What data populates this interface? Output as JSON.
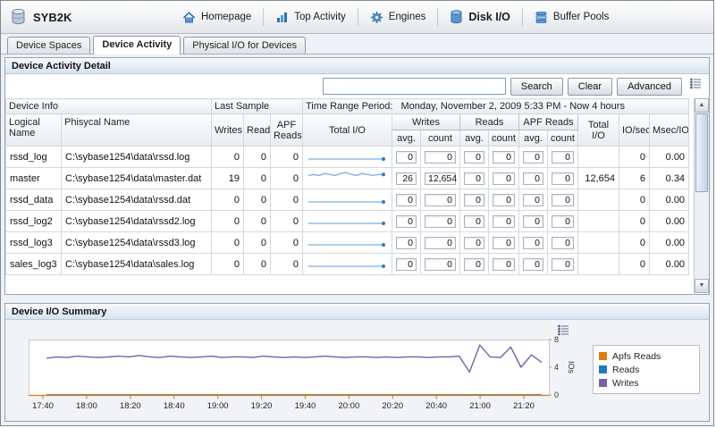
{
  "window": {
    "title": "SYB2K"
  },
  "nav": {
    "items": [
      {
        "label": "Homepage",
        "active": false
      },
      {
        "label": "Top Activity",
        "active": false
      },
      {
        "label": "Engines",
        "active": false
      },
      {
        "label": "Disk I/O",
        "active": true
      },
      {
        "label": "Buffer Pools",
        "active": false
      }
    ]
  },
  "tabs": [
    {
      "label": "Device Spaces",
      "active": false
    },
    {
      "label": "Device Activity",
      "active": true
    },
    {
      "label": "Physical I/O for Devices",
      "active": false
    }
  ],
  "detail_panel": {
    "title": "Device Activity Detail",
    "search": {
      "value": "",
      "search_label": "Search",
      "clear_label": "Clear",
      "advanced_label": "Advanced"
    },
    "table": {
      "group_device_info": "Device Info",
      "group_last_sample": "Last Sample",
      "time_range_label": "Time Range Period:",
      "time_range_value": "Monday, November 2, 2009  5:33 PM - Now  4 hours",
      "columns": {
        "logical_name": "Logical Name",
        "physical_name": "Phisycal Name",
        "writes": "Writes",
        "reads": "Reads",
        "apf_reads": "APF Reads",
        "total_io_trend": "Total I/O",
        "writes_group": "Writes",
        "reads_group": "Reads",
        "apf_group": "APF Reads",
        "avg": "avg.",
        "count": "count",
        "total_io": "Total I/O",
        "io_sec": "IO/sec",
        "msec_io": "Msec/IO"
      },
      "rows": [
        {
          "logical": "rssd_log",
          "physical": "C:\\sybase1254\\data\\rssd.log",
          "writes": "0",
          "reads": "0",
          "apf_reads": "0",
          "spark": [
            0,
            0
          ],
          "w_avg": "0",
          "w_count": "0",
          "r_avg": "0",
          "r_count": "0",
          "a_avg": "0",
          "a_count": "0",
          "total_io": "",
          "io_sec": "0",
          "msec_io": "0.00"
        },
        {
          "logical": "master",
          "physical": "C:\\sybase1254\\data\\master.dat",
          "writes": "19",
          "reads": "0",
          "apf_reads": "0",
          "spark": [
            5,
            6,
            5,
            7,
            6,
            5,
            7,
            8,
            6,
            5,
            7,
            6,
            5,
            6,
            6
          ],
          "w_avg": "26",
          "w_count": "12,654",
          "r_avg": "0",
          "r_count": "0",
          "a_avg": "0",
          "a_count": "0",
          "total_io": "12,654",
          "io_sec": "6",
          "msec_io": "0.34"
        },
        {
          "logical": "rssd_data",
          "physical": "C:\\sybase1254\\data\\rssd.dat",
          "writes": "0",
          "reads": "0",
          "apf_reads": "0",
          "spark": [
            0,
            0
          ],
          "w_avg": "0",
          "w_count": "0",
          "r_avg": "0",
          "r_count": "0",
          "a_avg": "0",
          "a_count": "0",
          "total_io": "",
          "io_sec": "0",
          "msec_io": "0.00"
        },
        {
          "logical": "rssd_log2",
          "physical": "C:\\sybase1254\\data\\rssd2.log",
          "writes": "0",
          "reads": "0",
          "apf_reads": "0",
          "spark": [
            0,
            0
          ],
          "w_avg": "0",
          "w_count": "0",
          "r_avg": "0",
          "r_count": "0",
          "a_avg": "0",
          "a_count": "0",
          "total_io": "",
          "io_sec": "0",
          "msec_io": "0.00"
        },
        {
          "logical": "rssd_log3",
          "physical": "C:\\sybase1254\\data\\rssd3.log",
          "writes": "0",
          "reads": "0",
          "apf_reads": "0",
          "spark": [
            0,
            0
          ],
          "w_avg": "0",
          "w_count": "0",
          "r_avg": "0",
          "r_count": "0",
          "a_avg": "0",
          "a_count": "0",
          "total_io": "",
          "io_sec": "0",
          "msec_io": "0.00"
        },
        {
          "logical": "sales_log3",
          "physical": "C:\\sybase1254\\data\\sales.log",
          "writes": "0",
          "reads": "0",
          "apf_reads": "0",
          "spark": [
            0,
            0
          ],
          "w_avg": "0",
          "w_count": "0",
          "r_avg": "0",
          "r_count": "0",
          "a_avg": "0",
          "a_count": "0",
          "total_io": "",
          "io_sec": "0",
          "msec_io": "0.00"
        }
      ]
    },
    "scrollbar": {
      "up_icon": "▲",
      "down_icon": "▼"
    }
  },
  "summary_panel": {
    "title": "Device I/O Summary"
  },
  "chart_data": {
    "type": "line",
    "title": "Device I/O Summary",
    "xlabel": "",
    "ylabel": "IOs",
    "ylim": [
      0,
      8
    ],
    "yticks": [
      0,
      4,
      8
    ],
    "grid": false,
    "legend_position": "right",
    "x_tick_labels": [
      "17:40",
      "18:00",
      "18:20",
      "18:40",
      "19:00",
      "19:20",
      "19:40",
      "20:00",
      "20:20",
      "20:40",
      "21:00",
      "21:20"
    ],
    "series": [
      {
        "name": "Apfs Reads",
        "color": "#e07b10",
        "values": [
          0,
          0
        ]
      },
      {
        "name": "Reads",
        "color": "#2779bf",
        "values": [
          0,
          0
        ]
      },
      {
        "name": "Writes",
        "color": "#7a5fa5",
        "values": [
          5.3,
          5.5,
          5.4,
          5.6,
          5.5,
          5.4,
          5.5,
          5.6,
          5.5,
          5.7,
          5.5,
          5.4,
          5.6,
          5.5,
          5.4,
          5.5,
          5.6,
          5.4,
          5.5,
          5.5,
          5.4,
          5.6,
          5.5,
          5.4,
          5.5,
          5.4,
          5.5,
          5.6,
          5.5,
          5.4,
          5.5,
          5.5,
          5.4,
          5.5,
          5.4,
          5.5,
          5.5,
          5.4,
          5.5,
          5.5,
          5.6,
          3.3,
          7.2,
          5.5,
          5.4,
          6.9,
          4.0,
          5.8,
          4.7
        ]
      }
    ]
  }
}
